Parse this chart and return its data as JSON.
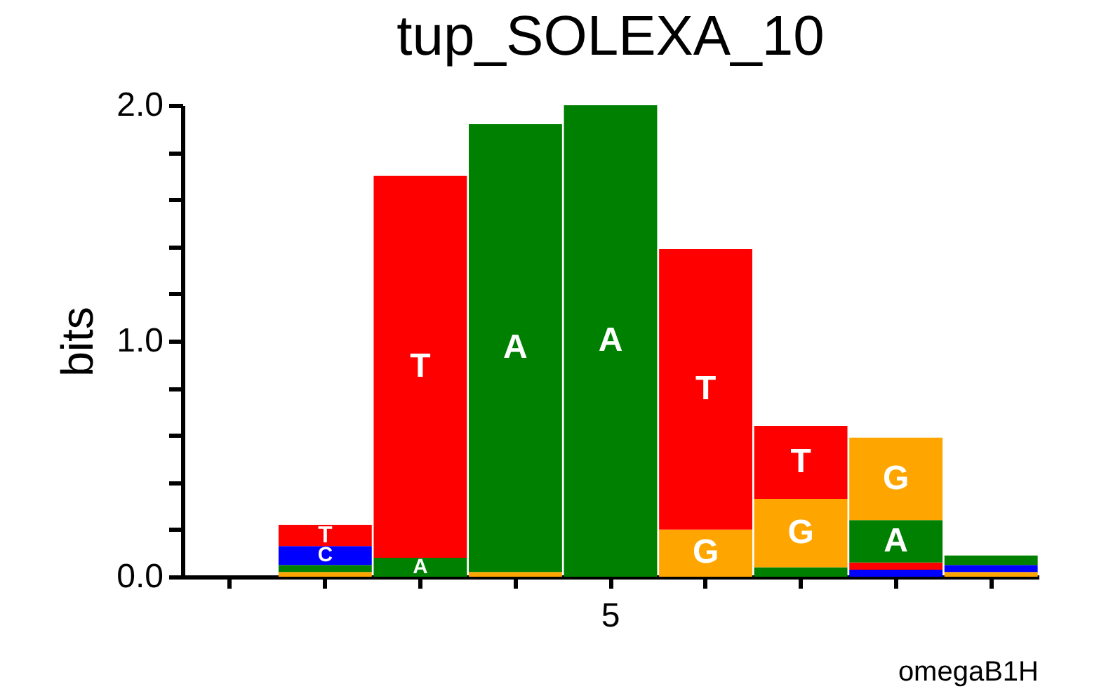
{
  "chart_data": {
    "type": "bar",
    "stacked": true,
    "title": "tup_SOLEXA_10",
    "ylabel": "bits",
    "annotations": [
      "omegaB1H"
    ],
    "categories": [
      null,
      null,
      null,
      null,
      "5",
      null,
      null,
      null,
      null
    ],
    "ylim": [
      0,
      2
    ],
    "yticks": [
      {
        "value": 0,
        "label": "0.0"
      },
      {
        "value": 0.2,
        "label": null
      },
      {
        "value": 0.4,
        "label": null
      },
      {
        "value": 0.6,
        "label": null
      },
      {
        "value": 0.8,
        "label": null
      },
      {
        "value": 1,
        "label": "1.0"
      },
      {
        "value": 1.2,
        "label": null
      },
      {
        "value": 1.4,
        "label": null
      },
      {
        "value": 1.6,
        "label": null
      },
      {
        "value": 1.8,
        "label": null
      },
      {
        "value": 2,
        "label": "2.0"
      }
    ],
    "grid": false,
    "legend": false,
    "series": [
      {
        "name": "A",
        "color": "#008000",
        "values": [
          null,
          0.03,
          0.08,
          1.9,
          2.0,
          0,
          0.04,
          0.18,
          0.04
        ]
      },
      {
        "name": "C",
        "color": "#0000ff",
        "values": [
          null,
          0.08,
          0,
          0,
          0,
          0,
          0,
          0.03,
          0.03
        ]
      },
      {
        "name": "G",
        "color": "#ffa500",
        "values": [
          null,
          0.02,
          0,
          0.02,
          0,
          0.2,
          0.29,
          0.35,
          0.02
        ]
      },
      {
        "name": "T",
        "color": "#ff0000",
        "values": [
          null,
          0.09,
          1.62,
          0,
          0,
          1.19,
          0.31,
          0.03,
          0
        ]
      }
    ]
  }
}
